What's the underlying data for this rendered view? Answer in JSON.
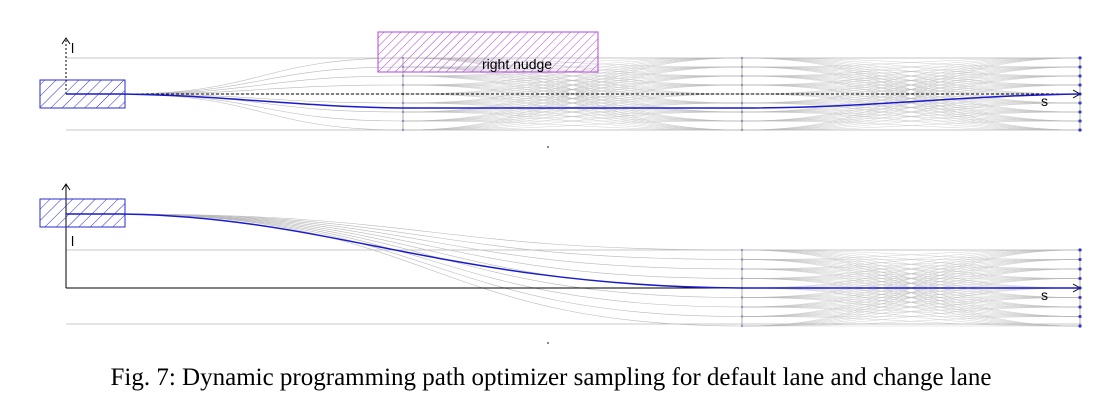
{
  "colors": {
    "vehicle": "#2b2bd0",
    "obstacle": "#b347d9",
    "path": "#1a1acc",
    "sample": "#b8b8b8",
    "axis": "#000000"
  },
  "top_panel": {
    "l_label": "l",
    "s_label": "s",
    "obstacle_label": "right nudge"
  },
  "bottom_panel": {
    "l_label": "l",
    "s_label": "s"
  },
  "caption": "Fig. 7: Dynamic programming path optimizer sampling for default lane and change lane"
}
